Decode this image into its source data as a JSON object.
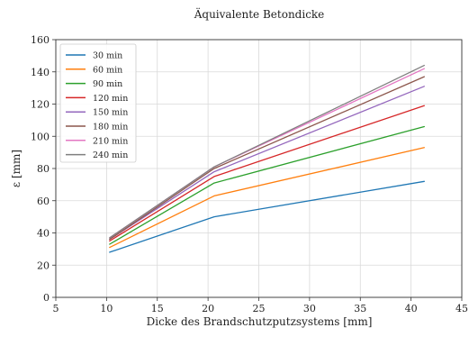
{
  "chart_data": {
    "type": "line",
    "title": "Äquivalente Betondicke",
    "xlabel": "Dicke des Brandschutzputzsystems [mm]",
    "ylabel": "ε [mm]",
    "xlim": [
      5,
      45
    ],
    "ylim": [
      0,
      160
    ],
    "xticks": [
      5,
      10,
      15,
      20,
      25,
      30,
      35,
      40,
      45
    ],
    "yticks": [
      0,
      20,
      40,
      60,
      80,
      100,
      120,
      140,
      160
    ],
    "grid": true,
    "legend_position": "upper-left",
    "x": [
      10.3,
      20.6,
      41.3
    ],
    "series": [
      {
        "name": "30 min",
        "color": "#1f77b4",
        "values": [
          28,
          50,
          72
        ]
      },
      {
        "name": "60 min",
        "color": "#ff7f0e",
        "values": [
          31,
          63,
          93
        ]
      },
      {
        "name": "90 min",
        "color": "#2ca02c",
        "values": [
          33,
          71,
          106
        ]
      },
      {
        "name": "120 min",
        "color": "#d62728",
        "values": [
          35,
          75,
          119
        ]
      },
      {
        "name": "150 min",
        "color": "#9467bd",
        "values": [
          36,
          78,
          131
        ]
      },
      {
        "name": "180 min",
        "color": "#8c564b",
        "values": [
          36,
          80,
          137
        ]
      },
      {
        "name": "210 min",
        "color": "#e377c2",
        "values": [
          37,
          81,
          142
        ]
      },
      {
        "name": "240 min",
        "color": "#7f7f7f",
        "values": [
          37,
          81,
          144
        ]
      }
    ]
  }
}
